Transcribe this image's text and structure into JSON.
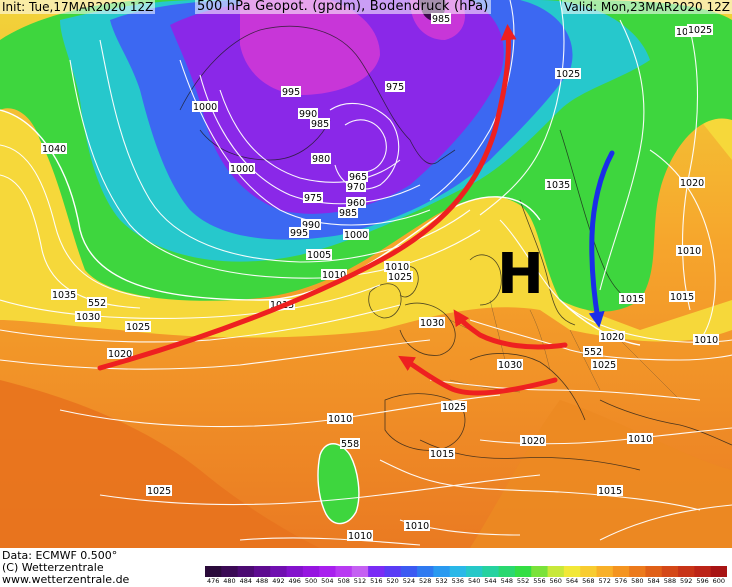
{
  "header": {
    "init": "Init: Tue,17MAR2020 12Z",
    "title": "500 hPa Geopot. (gpdm), Bodendruck (hPa)",
    "valid": "Valid: Mon,23MAR2020 12Z"
  },
  "footer": {
    "data_line": "Data: ECMWF   0.500°",
    "copyright": "(C) Wetterzentrale",
    "website": "www.wetterzentrale.de"
  },
  "pressure_center": {
    "label": "H",
    "color": "#000000"
  },
  "colorbar": {
    "ticks": [
      "476",
      "480",
      "484",
      "488",
      "492",
      "496",
      "500",
      "504",
      "508",
      "512",
      "516",
      "520",
      "524",
      "528",
      "532",
      "536",
      "540",
      "544",
      "548",
      "552",
      "556",
      "560",
      "564",
      "568",
      "572",
      "576",
      "580",
      "584",
      "588",
      "592",
      "596",
      "600"
    ],
    "colors": [
      "#2a0a3a",
      "#3b0a55",
      "#4c0b72",
      "#5e0c90",
      "#700fb0",
      "#8312cc",
      "#9615e0",
      "#a820ee",
      "#b83af2",
      "#c460f2",
      "#7a2cf5",
      "#5a3cf5",
      "#3c5af2",
      "#2f7af0",
      "#2a9af0",
      "#2ab8e8",
      "#26c8c8",
      "#26d2a0",
      "#2ad870",
      "#33de44",
      "#7ae23a",
      "#c8e83a",
      "#f2e838",
      "#f8cc30",
      "#f8b028",
      "#f49420",
      "#ec7a1c",
      "#e06018",
      "#d44818",
      "#c83418",
      "#bc2418",
      "#a81414"
    ]
  },
  "isobar_labels": [
    "985",
    "1030",
    "1025",
    "975",
    "995",
    "990",
    "985",
    "1000",
    "980",
    "965",
    "970",
    "1000",
    "975",
    "960",
    "985",
    "990",
    "995",
    "1000",
    "1035",
    "1025",
    "1040",
    "1005",
    "1010",
    "1010",
    "1025",
    "1020",
    "1015",
    "1010",
    "1035",
    "552",
    "1015",
    "1030",
    "1025",
    "1030",
    "1010",
    "1020",
    "1020",
    "552",
    "1025",
    "1030",
    "1015",
    "1025",
    "1020",
    "1010",
    "1015",
    "1010",
    "558",
    "1025",
    "1015",
    "1010",
    "1010"
  ],
  "arrows": [
    {
      "name": "arrow-atlantic-ridge",
      "color": "#ee2020"
    },
    {
      "name": "arrow-east-flow-north",
      "color": "#ee2020"
    },
    {
      "name": "arrow-east-flow-south",
      "color": "#ee2020"
    },
    {
      "name": "arrow-cold-advection",
      "color": "#1a2ee8"
    }
  ]
}
